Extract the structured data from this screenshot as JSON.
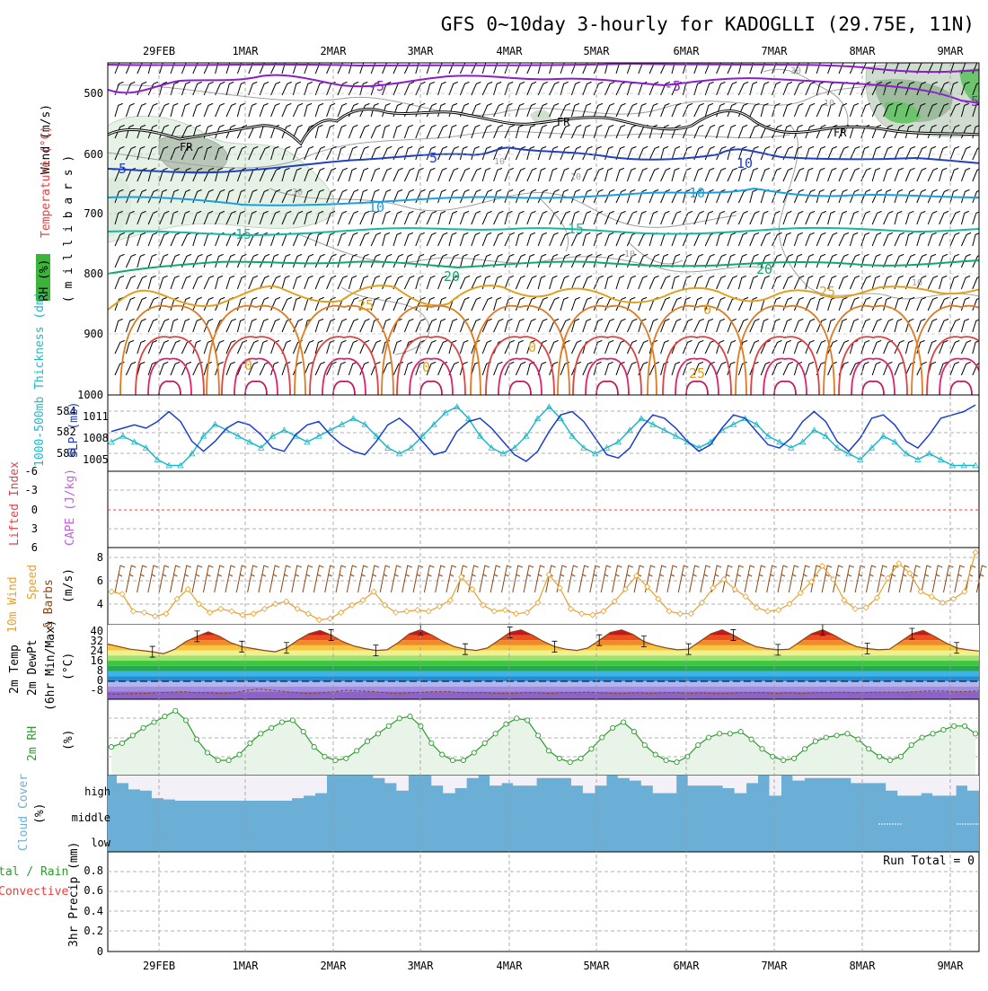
{
  "title": "GFS 0~10day 3-hourly for KADOGLLI (29.75E, 11N)",
  "date_labels": [
    "29FEB",
    "1MAR",
    "2MAR",
    "3MAR",
    "4MAR",
    "5MAR",
    "6MAR",
    "7MAR",
    "8MAR",
    "9MAR"
  ],
  "panels": {
    "upper": {
      "label_wind": "Wind (m/s)",
      "label_temp": "Temperature (°C)",
      "label_rh": "RH (%)",
      "label_mb": "( m i l l i b a r s )",
      "pressure_ticks": [
        "500",
        "600",
        "700",
        "800",
        "900",
        "1000"
      ],
      "contour_labels": [
        "-5",
        "-5",
        "-5",
        "5",
        "-5",
        "FR",
        "FR",
        "FR",
        "10",
        "10",
        "10",
        "15",
        "15",
        "20",
        "20",
        "25",
        "25",
        "0",
        "0",
        "0",
        "0",
        "25",
        "10",
        "10",
        "10",
        "10",
        "10",
        "30",
        "30"
      ]
    },
    "thick": {
      "label_thick": "1000-500mb Thickness (dm)",
      "label_slp": "SLP (mb)",
      "left_ticks": [
        "584",
        "582",
        "580"
      ],
      "right_ticks": [
        "1011",
        "1008",
        "1005"
      ]
    },
    "cape": {
      "label_li": "Lifted Index",
      "label_cape": "CAPE (J/kg)",
      "ticks": [
        "-6",
        "-3",
        "0",
        "3",
        "6"
      ]
    },
    "wind10": {
      "label_a": "10m Wind",
      "label_b": "Speed",
      "label_c": "& Barbs",
      "units": "(m/s)",
      "ticks": [
        "8",
        "6",
        "4"
      ]
    },
    "temp2m": {
      "label_a": "2m Temp",
      "label_b": "2m DewPt",
      "label_c": "(6hr Min/Max)",
      "units": "(°C)",
      "ticks": [
        "40",
        "32",
        "24",
        "16",
        "8",
        "0",
        "-8"
      ]
    },
    "rh2m": {
      "label": "2m RH",
      "units": "(%)"
    },
    "cloud": {
      "label": "Cloud Cover",
      "units": "(%)",
      "levels": [
        "high",
        "middle",
        "low"
      ]
    },
    "precip": {
      "label_a": "tal / Rain",
      "label_b": "Convective",
      "label_c": "3hr Precip (mm)",
      "run_total": "Run Total = 0",
      "ticks": [
        "0.8",
        "0.6",
        "0.4",
        "0.2",
        "0"
      ]
    }
  },
  "colors": {
    "slp": "#1a3fd0",
    "thickness": "#20b8c8",
    "wind10": "#e8a030",
    "rh2m": "#2f9a2f",
    "cloud": "#6baed6",
    "temp_line": "#8b4513"
  },
  "chart_data": [
    {
      "type": "line",
      "title": "1000-500mb Thickness (dm) / SLP (mb)",
      "x": [
        "29FEB 00",
        "29FEB 03",
        "29FEB 06",
        "29FEB 09",
        "29FEB 12",
        "29FEB 15",
        "29FEB 18",
        "29FEB 21",
        "1MAR 00",
        "1MAR 03",
        "1MAR 06",
        "1MAR 09",
        "1MAR 12",
        "1MAR 15",
        "1MAR 18",
        "1MAR 21",
        "2MAR 00",
        "2MAR 03",
        "2MAR 06",
        "2MAR 09",
        "2MAR 12",
        "2MAR 15",
        "2MAR 18",
        "2MAR 21",
        "3MAR 00",
        "3MAR 03",
        "3MAR 06",
        "3MAR 09",
        "3MAR 12",
        "3MAR 15",
        "3MAR 18",
        "3MAR 21",
        "4MAR 00",
        "4MAR 03",
        "4MAR 06",
        "4MAR 09",
        "4MAR 12",
        "4MAR 15",
        "4MAR 18",
        "4MAR 21",
        "5MAR 00",
        "5MAR 03",
        "5MAR 06",
        "5MAR 09",
        "5MAR 12",
        "5MAR 15",
        "5MAR 18",
        "5MAR 21",
        "6MAR 00",
        "6MAR 03",
        "6MAR 06",
        "6MAR 09",
        "6MAR 12",
        "6MAR 15",
        "6MAR 18",
        "6MAR 21",
        "7MAR 00",
        "7MAR 03",
        "7MAR 06",
        "7MAR 09",
        "7MAR 12",
        "7MAR 15",
        "7MAR 18",
        "7MAR 21",
        "8MAR 00",
        "8MAR 03",
        "8MAR 06",
        "8MAR 09",
        "8MAR 12",
        "8MAR 15",
        "8MAR 18",
        "8MAR 21",
        "9MAR 00",
        "9MAR 03",
        "9MAR 06",
        "9MAR 09"
      ],
      "series": [
        {
          "name": "SLP (mb)",
          "values": [
            1008.5,
            1009,
            1009.5,
            1009,
            1010,
            1011.5,
            1010,
            1007,
            1005.5,
            1007,
            1009,
            1010,
            1009.5,
            1008,
            1006,
            1005.5,
            1008,
            1009.5,
            1010,
            1008,
            1006.5,
            1005.5,
            1005,
            1007,
            1009.5,
            1010.5,
            1009,
            1007,
            1005,
            1005.5,
            1008.5,
            1010,
            1010.5,
            1009,
            1007,
            1005,
            1004,
            1005.5,
            1008.5,
            1011,
            1011.5,
            1010,
            1007.5,
            1005,
            1004.5,
            1006,
            1009,
            1011,
            1010.5,
            1009,
            1007,
            1005.5,
            1006.5,
            1009,
            1011,
            1010.5,
            1008.5,
            1006.5,
            1006,
            1007.5,
            1010,
            1011.5,
            1010,
            1007,
            1005.5,
            1007.5,
            1010.5,
            1011,
            1009.5,
            1007,
            1006,
            1008,
            1010.5,
            1011,
            1011.5,
            1012.5
          ]
        },
        {
          "name": "1000-500mb Thickness (dm)",
          "values": [
            581.5,
            582,
            581.5,
            581,
            580,
            579.5,
            579.5,
            580.5,
            582,
            583,
            582.5,
            582,
            581.5,
            581,
            582,
            582.5,
            582,
            581.5,
            582,
            582.5,
            583,
            583.5,
            583,
            582,
            581,
            580.5,
            581,
            582,
            583,
            584,
            584.5,
            583.5,
            582,
            581,
            580.5,
            581,
            582,
            583.5,
            584.5,
            583.5,
            582,
            581,
            580.5,
            581,
            581.5,
            582.5,
            583.5,
            583,
            582.5,
            582,
            581.5,
            581,
            581.5,
            582.5,
            583,
            583.5,
            583,
            582,
            581.5,
            581,
            581.5,
            582.5,
            582,
            581,
            580.5,
            580,
            581,
            582,
            581.5,
            580.5,
            580,
            580.5,
            580,
            579.5,
            579.5,
            579.5
          ]
        }
      ],
      "left_ylim": [
        579,
        585.5
      ],
      "right_ylim": [
        1002.5,
        1014
      ]
    },
    {
      "type": "line",
      "title": "10m Wind Speed (m/s)",
      "series": [
        {
          "name": "10m Wind Speed",
          "values": [
            5.2,
            5,
            3.6,
            3.5,
            3.2,
            3.4,
            4.6,
            5.4,
            4.2,
            3.5,
            3.8,
            3.6,
            3.3,
            3.4,
            3.8,
            4.2,
            4.4,
            3.8,
            3.4,
            2.9,
            3,
            3.5,
            4.1,
            4.5,
            5.2,
            4.1,
            3.5,
            3.6,
            3.7,
            3.6,
            4,
            4.5,
            6.4,
            5.4,
            4.1,
            3.6,
            3.7,
            3.4,
            3.5,
            4.3,
            6.6,
            5.5,
            3.8,
            3.4,
            3.3,
            3.6,
            4.4,
            5.4,
            6.5,
            5.6,
            4.6,
            3.6,
            3.4,
            3.4,
            4.3,
            5.5,
            6.2,
            5.4,
            4.8,
            3.9,
            3.6,
            3.7,
            4.2,
            5.1,
            6,
            7.3,
            6.2,
            4.5,
            3.8,
            3.9,
            4.7,
            6.3,
            7.5,
            6.7,
            5.2,
            4.8,
            4.3,
            4.6,
            5.2,
            8.4
          ]
        }
      ],
      "ylim": [
        2.5,
        8.8
      ]
    },
    {
      "type": "line",
      "title": "2m Temp (°C)",
      "series": [
        {
          "name": "2m Temp",
          "values": [
            29,
            27,
            25,
            24,
            23,
            21.5,
            25,
            31,
            35,
            38.5,
            35,
            30,
            27,
            25.5,
            24,
            23,
            26,
            32,
            37,
            39.5,
            36,
            31,
            27.5,
            25.5,
            24,
            24.5,
            30,
            37,
            40,
            36,
            31,
            27,
            25,
            24,
            26,
            32,
            38,
            40,
            36,
            31,
            27,
            25,
            24,
            26,
            32,
            38,
            40,
            36.5,
            31,
            28,
            26,
            24.5,
            25,
            31,
            37,
            40,
            36,
            31,
            27,
            25.5,
            24.5,
            25,
            31,
            37,
            40,
            36,
            31,
            27,
            25.5,
            24.5,
            25,
            31,
            37,
            39.5,
            35,
            30,
            26,
            24.5,
            23.5
          ]
        },
        {
          "name": "2m DewPt",
          "values": [
            -10,
            -10,
            -9.5,
            -9.5,
            -9,
            -8.5,
            -8,
            -9,
            -9,
            -9.5,
            -9,
            -7,
            -6,
            -7,
            -8,
            -9,
            -9.5,
            -9,
            -8,
            -7,
            -7.5,
            -8,
            -9,
            -9.5,
            -9,
            -8.5,
            -8,
            -8,
            -9,
            -9,
            -9,
            -9.5,
            -9.5,
            -9,
            -9,
            -9.5,
            -9,
            -9,
            -8.5,
            -9,
            -9.5,
            -9.5,
            -9,
            -9.5,
            -9,
            -9,
            -9.5,
            -9,
            -9.5,
            -9.5,
            -9,
            -9,
            -9,
            -9.5,
            -9,
            -9.5,
            -9,
            -9,
            -8.5,
            -9,
            -9,
            -8.5,
            -8.5,
            -8.5,
            -8,
            -7.5,
            -7.5,
            -8,
            -8,
            -7.5
          ]
        }
      ],
      "ylim": [
        -14,
        44
      ]
    },
    {
      "type": "area",
      "title": "2m RH (%)",
      "series": [
        {
          "name": "2m RH",
          "values": [
            25,
            27,
            31,
            35,
            38,
            41,
            44,
            39,
            29,
            22,
            18,
            18,
            21,
            27,
            32,
            35,
            38,
            39,
            33,
            25,
            20,
            18,
            19,
            23,
            28,
            32,
            36,
            40,
            41,
            36,
            27,
            21,
            18,
            18,
            22,
            27,
            32,
            37,
            40,
            39,
            31,
            23,
            19,
            17,
            19,
            24,
            30,
            35,
            38,
            33,
            26,
            21,
            18,
            17,
            20,
            26,
            30,
            32,
            32,
            33,
            29,
            24,
            20,
            18,
            19,
            24,
            28,
            30,
            31,
            32,
            29,
            24,
            20,
            18,
            20,
            26,
            30,
            32,
            34,
            36,
            36,
            32
          ]
        }
      ],
      "ylim": [
        10,
        50
      ]
    },
    {
      "type": "bar",
      "title": "High Cloud Cover (%)",
      "series": [
        {
          "name": "high",
          "values": [
            70,
            45,
            40,
            10,
            5,
            0,
            0,
            0,
            0,
            0,
            0,
            0,
            0,
            0,
            0,
            10,
            20,
            30,
            100,
            100,
            100,
            100,
            90,
            70,
            40,
            100,
            100,
            60,
            30,
            50,
            90,
            100,
            60,
            70,
            60,
            60,
            90,
            90,
            90,
            60,
            30,
            60,
            100,
            90,
            80,
            60,
            30,
            30,
            100,
            60,
            60,
            60,
            50,
            30,
            70,
            100,
            20,
            100,
            80,
            90,
            90,
            90,
            90,
            70,
            70,
            70,
            40,
            20,
            20,
            30,
            20,
            20,
            60,
            40
          ]
        }
      ],
      "ylim": [
        0,
        100
      ]
    },
    {
      "type": "line",
      "title": "3hr Precip (mm)",
      "series": [
        {
          "name": "3hr Precip",
          "values": [
            0,
            0,
            0,
            0,
            0,
            0,
            0,
            0,
            0,
            0
          ]
        }
      ],
      "ylim": [
        0,
        1
      ]
    }
  ]
}
